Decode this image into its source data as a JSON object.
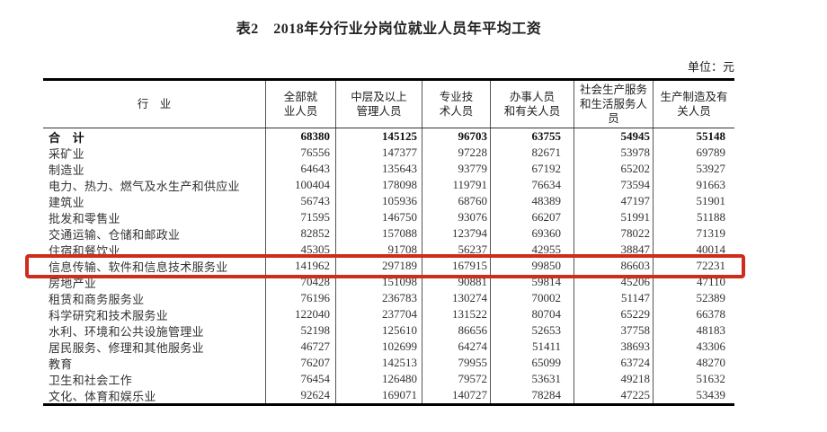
{
  "title": "表2　2018年分行业分岗位就业人员年平均工资",
  "unit_label": "单位：元",
  "highlight": {
    "row_industry": "信息传输、软件和信息技术服务业",
    "color": "#cf2c1e"
  },
  "table": {
    "columns": [
      {
        "label": "行　业",
        "lines": [
          "行　业"
        ]
      },
      {
        "label": "全部就业人员",
        "lines": [
          "全部就",
          "业人员"
        ]
      },
      {
        "label": "中层及以上管理人员",
        "lines": [
          "中层及以上",
          "管理人员"
        ]
      },
      {
        "label": "专业技术人员",
        "lines": [
          "专业技",
          "术人员"
        ]
      },
      {
        "label": "办事人员和有关人员",
        "lines": [
          "办事人员",
          "和有关人员"
        ]
      },
      {
        "label": "社会生产服务和生活服务人员",
        "lines": [
          "社会生产服务",
          "和生活服务人",
          "员"
        ]
      },
      {
        "label": "生产制造及有关人员",
        "lines": [
          "生产制造及有",
          "关人员"
        ]
      }
    ],
    "rows": [
      {
        "industry": "合　计",
        "bold": true,
        "values": [
          68380,
          145125,
          96703,
          63755,
          54945,
          55148
        ]
      },
      {
        "industry": "采矿业",
        "bold": false,
        "values": [
          76556,
          147377,
          97228,
          82671,
          53978,
          69789
        ]
      },
      {
        "industry": "制造业",
        "bold": false,
        "values": [
          64643,
          135643,
          93779,
          67192,
          65202,
          53927
        ]
      },
      {
        "industry": "电力、热力、燃气及水生产和供应业",
        "bold": false,
        "values": [
          100404,
          178098,
          119791,
          76634,
          73594,
          91663
        ]
      },
      {
        "industry": "建筑业",
        "bold": false,
        "values": [
          56743,
          105936,
          68760,
          48389,
          47197,
          51901
        ]
      },
      {
        "industry": "批发和零售业",
        "bold": false,
        "values": [
          71595,
          146750,
          93076,
          66207,
          51991,
          51188
        ]
      },
      {
        "industry": "交通运输、仓储和邮政业",
        "bold": false,
        "values": [
          82852,
          157088,
          123794,
          69360,
          78022,
          71319
        ]
      },
      {
        "industry": "住宿和餐饮业",
        "bold": false,
        "values": [
          45305,
          91708,
          56237,
          42955,
          38847,
          40014
        ]
      },
      {
        "industry": "信息传输、软件和信息技术服务业",
        "bold": false,
        "highlighted": true,
        "values": [
          141962,
          297189,
          167915,
          99850,
          86603,
          72231
        ]
      },
      {
        "industry": "房地产业",
        "bold": false,
        "values": [
          70428,
          151098,
          90881,
          59814,
          45206,
          47110
        ]
      },
      {
        "industry": "租赁和商务服务业",
        "bold": false,
        "values": [
          76196,
          236783,
          130274,
          70002,
          51147,
          52389
        ]
      },
      {
        "industry": "科学研究和技术服务业",
        "bold": false,
        "values": [
          122040,
          237704,
          131522,
          80704,
          65229,
          66378
        ]
      },
      {
        "industry": "水利、环境和公共设施管理业",
        "bold": false,
        "values": [
          52198,
          125610,
          86656,
          52653,
          37758,
          48183
        ]
      },
      {
        "industry": "居民服务、修理和其他服务业",
        "bold": false,
        "values": [
          46727,
          102699,
          64274,
          51411,
          38693,
          43306
        ]
      },
      {
        "industry": "教育",
        "bold": false,
        "values": [
          76207,
          142513,
          79955,
          65099,
          63724,
          48270
        ]
      },
      {
        "industry": "卫生和社会工作",
        "bold": false,
        "values": [
          76454,
          126480,
          79572,
          53631,
          49218,
          51632
        ]
      },
      {
        "industry": "文化、体育和娱乐业",
        "bold": false,
        "values": [
          92624,
          169071,
          140727,
          78284,
          47225,
          53439
        ]
      }
    ]
  }
}
